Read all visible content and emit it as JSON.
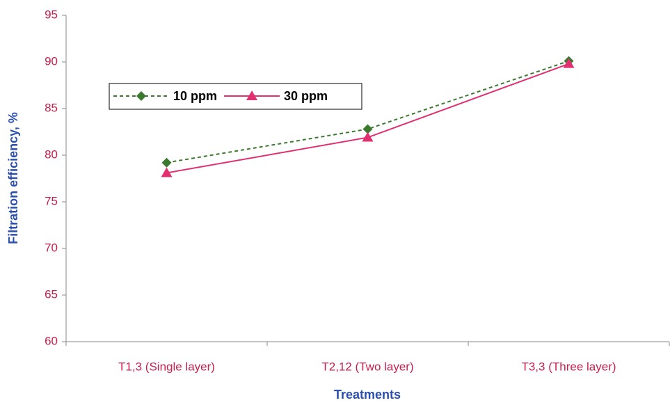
{
  "chart_data": {
    "type": "line",
    "x_label": "Treatments",
    "y_label": "Filtration efficiency, %",
    "categories": [
      "T1,3 (Single layer)",
      "T2,12 (Two layer)",
      "T3,3 (Three layer)"
    ],
    "series": [
      {
        "name": "10 ppm",
        "color": "#3b7a2e",
        "line_style": "dashed",
        "marker": "diamond",
        "values": [
          79.2,
          82.8,
          90.1
        ]
      },
      {
        "name": "30 ppm",
        "color": "#e03070",
        "line_style": "solid",
        "marker": "triangle",
        "values": [
          78.1,
          81.9,
          89.8
        ]
      }
    ],
    "ylim": [
      60,
      95
    ],
    "yticks": [
      60,
      65,
      70,
      75,
      80,
      85,
      90,
      95
    ],
    "grid": false,
    "legend_position": "upper left"
  }
}
